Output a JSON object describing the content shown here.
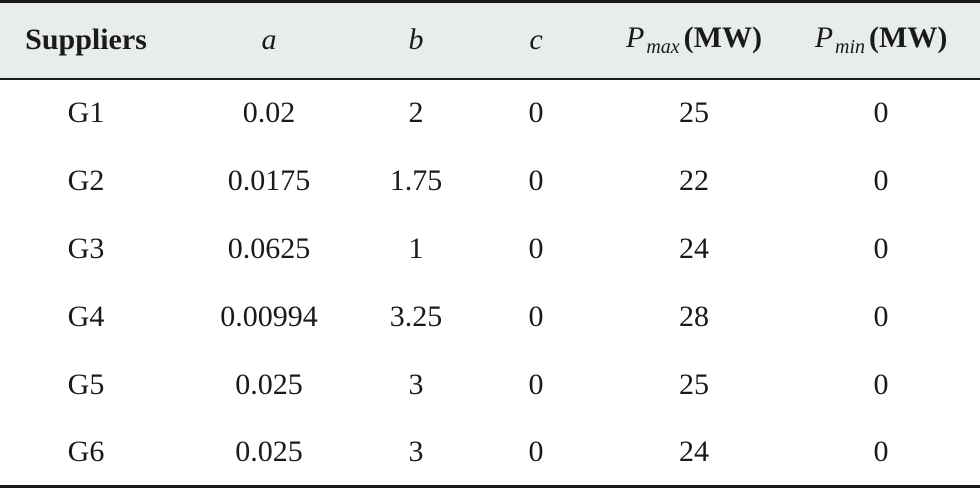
{
  "table": {
    "headers": {
      "suppliers": "Suppliers",
      "a": "a",
      "b": "b",
      "c": "c",
      "pmax_var": "P",
      "pmax_sub": "max",
      "pmax_unit": "(MW)",
      "pmin_var": "P",
      "pmin_sub": "min",
      "pmin_unit": "(MW)"
    },
    "rows": [
      {
        "supplier": "G1",
        "a": "0.02",
        "b": "2",
        "c": "0",
        "pmax": "25",
        "pmin": "0"
      },
      {
        "supplier": "G2",
        "a": "0.0175",
        "b": "1.75",
        "c": "0",
        "pmax": "22",
        "pmin": "0"
      },
      {
        "supplier": "G3",
        "a": "0.0625",
        "b": "1",
        "c": "0",
        "pmax": "24",
        "pmin": "0"
      },
      {
        "supplier": "G4",
        "a": "0.00994",
        "b": "3.25",
        "c": "0",
        "pmax": "28",
        "pmin": "0"
      },
      {
        "supplier": "G5",
        "a": "0.025",
        "b": "3",
        "c": "0",
        "pmax": "25",
        "pmin": "0"
      },
      {
        "supplier": "G6",
        "a": "0.025",
        "b": "3",
        "c": "0",
        "pmax": "24",
        "pmin": "0"
      }
    ]
  }
}
